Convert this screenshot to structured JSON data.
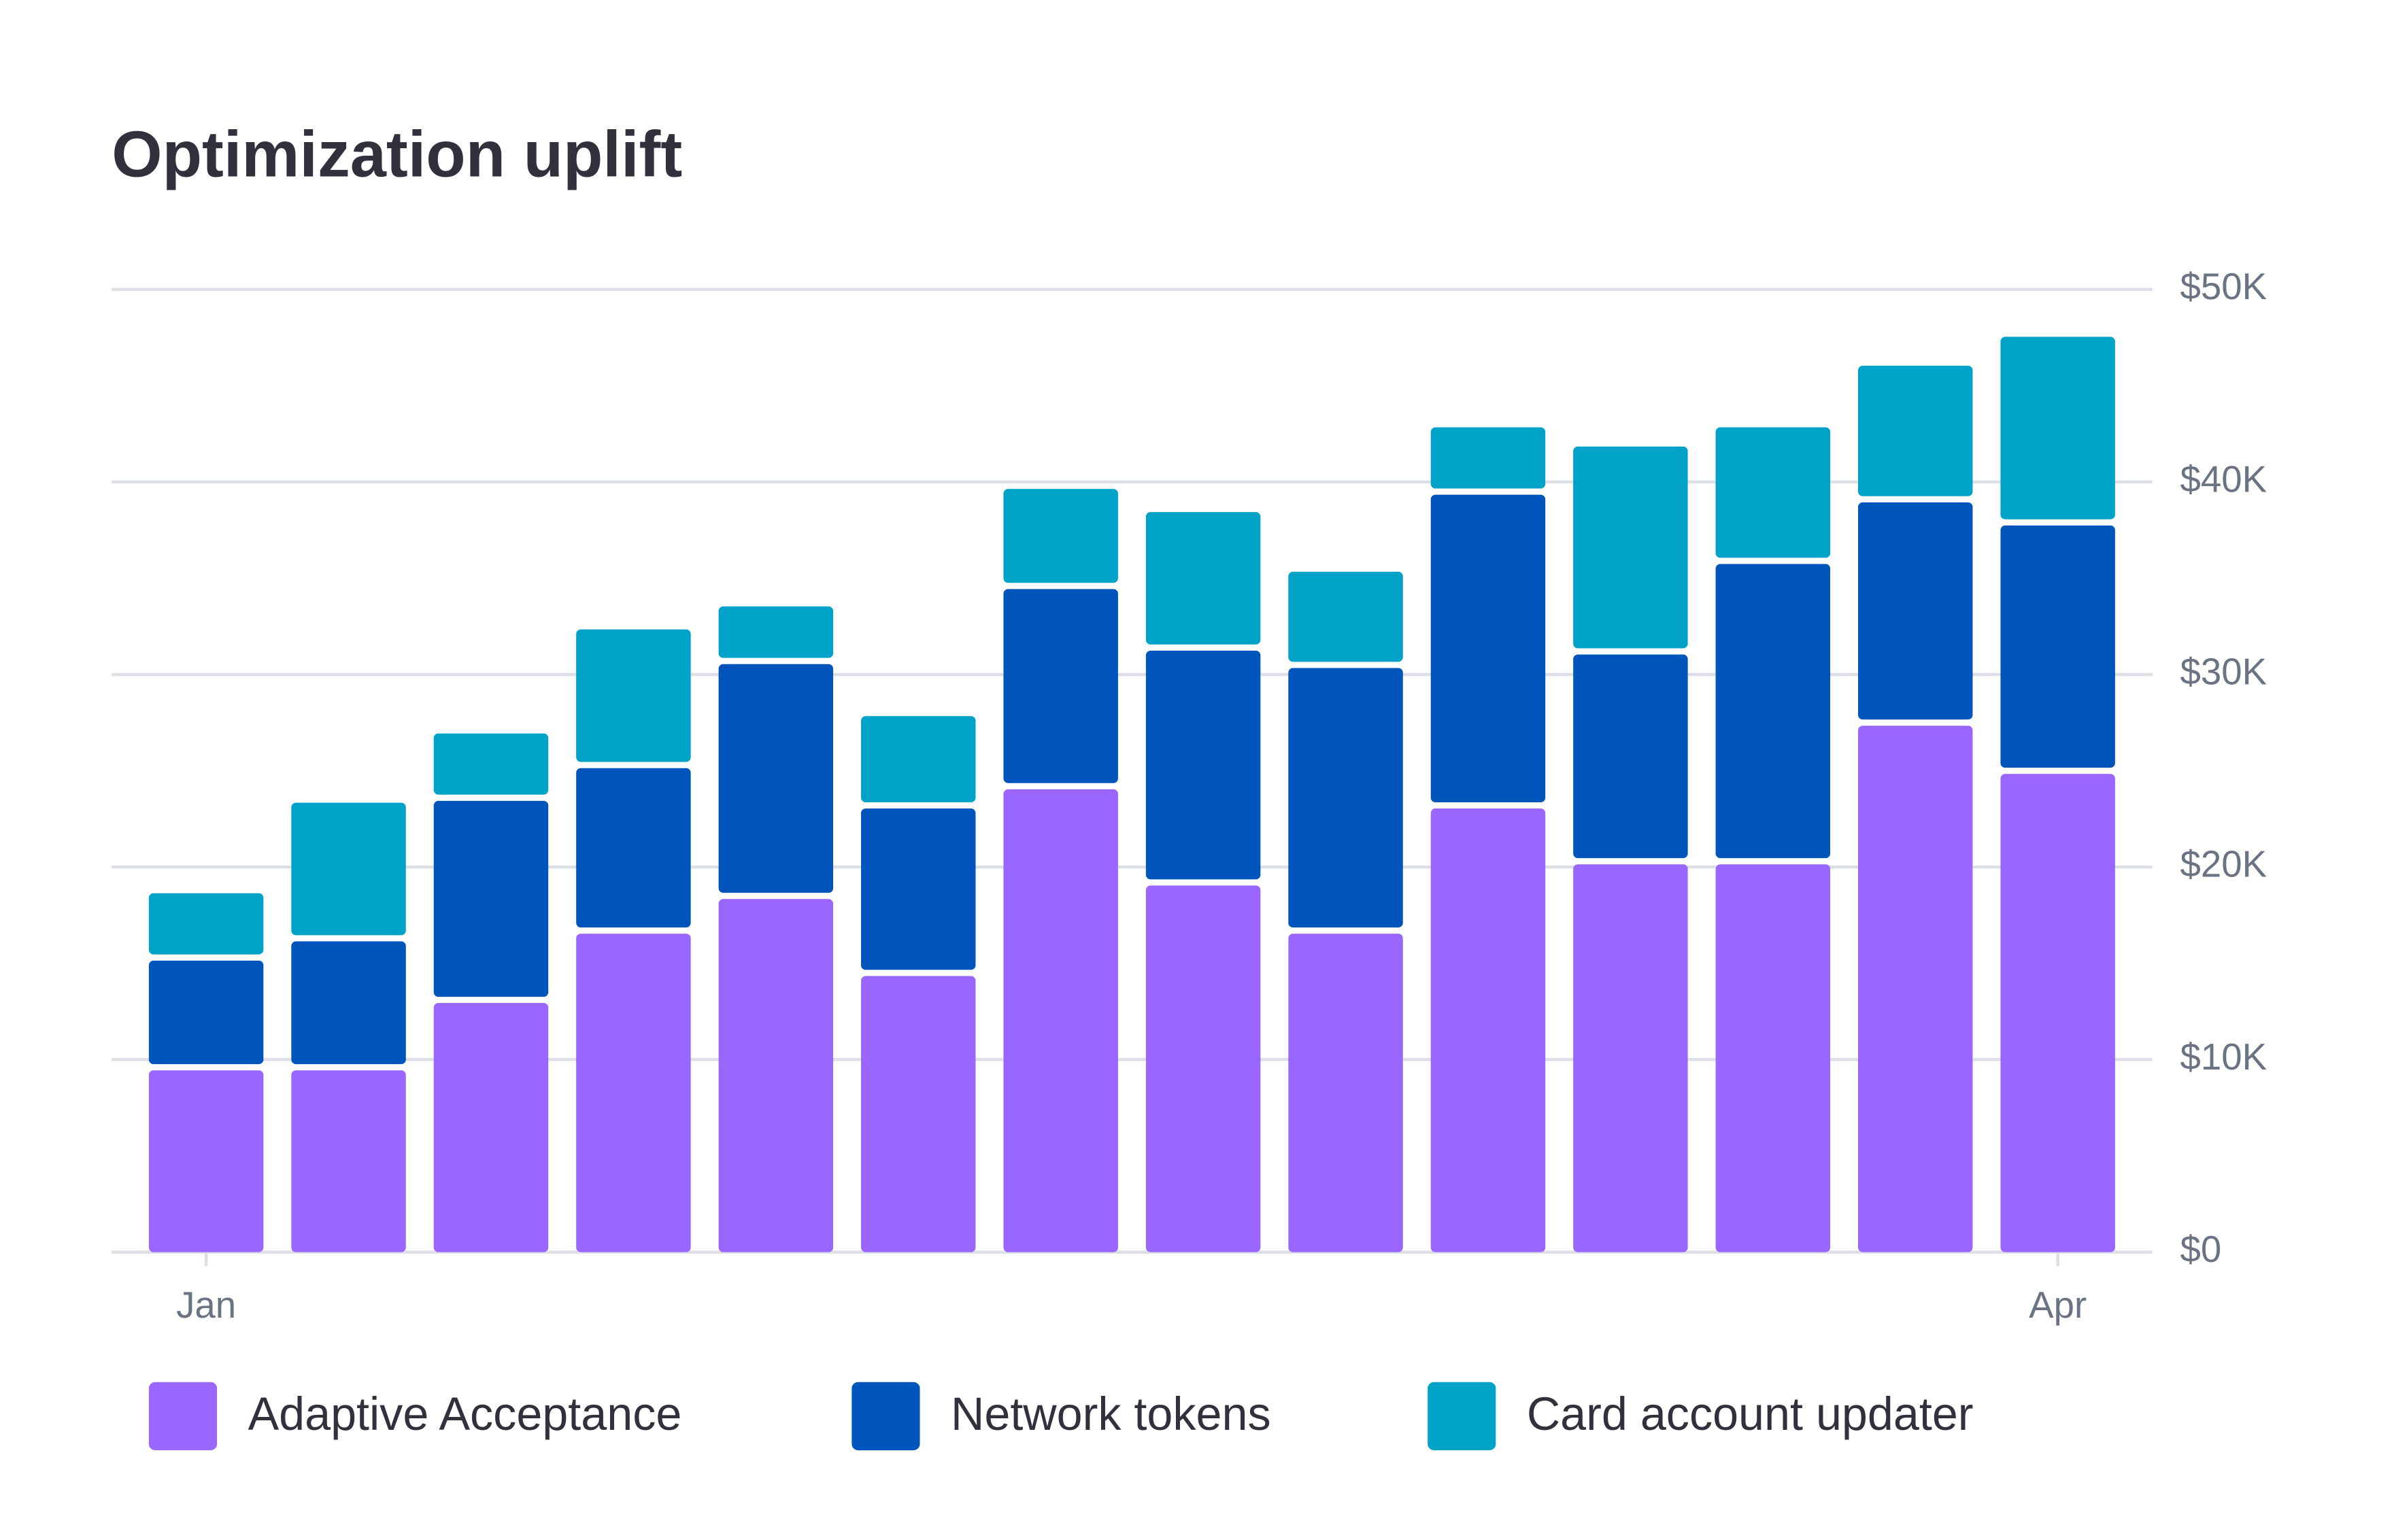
{
  "chart_data": {
    "type": "stacked-bar",
    "title": "Optimization uplift",
    "categories": [
      "Jan",
      null,
      null,
      null,
      null,
      null,
      null,
      null,
      null,
      null,
      null,
      null,
      null,
      "Apr"
    ],
    "series": [
      {
        "name": "Adaptive Acceptance",
        "color": "#9966ff",
        "values": [
          9600,
          9600,
          13100,
          16700,
          18500,
          14500,
          24200,
          19200,
          16700,
          23200,
          20300,
          20300,
          27500,
          25000
        ]
      },
      {
        "name": "Network tokens",
        "color": "#0055bc",
        "values": [
          5700,
          6700,
          10500,
          8600,
          12200,
          8700,
          10400,
          12200,
          13800,
          16300,
          10900,
          15600,
          11600,
          12900
        ]
      },
      {
        "name": "Card account updater",
        "color": "#00a2c7",
        "values": [
          3500,
          7200,
          3500,
          7200,
          3000,
          4800,
          5200,
          7200,
          5000,
          3500,
          10800,
          7100,
          7100,
          9800
        ]
      }
    ],
    "ylim": [
      0,
      50000
    ],
    "yticks": [
      {
        "value": 0,
        "label": "$0"
      },
      {
        "value": 10000,
        "label": "$10K"
      },
      {
        "value": 20000,
        "label": "$20K"
      },
      {
        "value": 30000,
        "label": "$30K"
      },
      {
        "value": 40000,
        "label": "$40K"
      },
      {
        "value": 50000,
        "label": "$50K"
      }
    ],
    "grid": true
  }
}
